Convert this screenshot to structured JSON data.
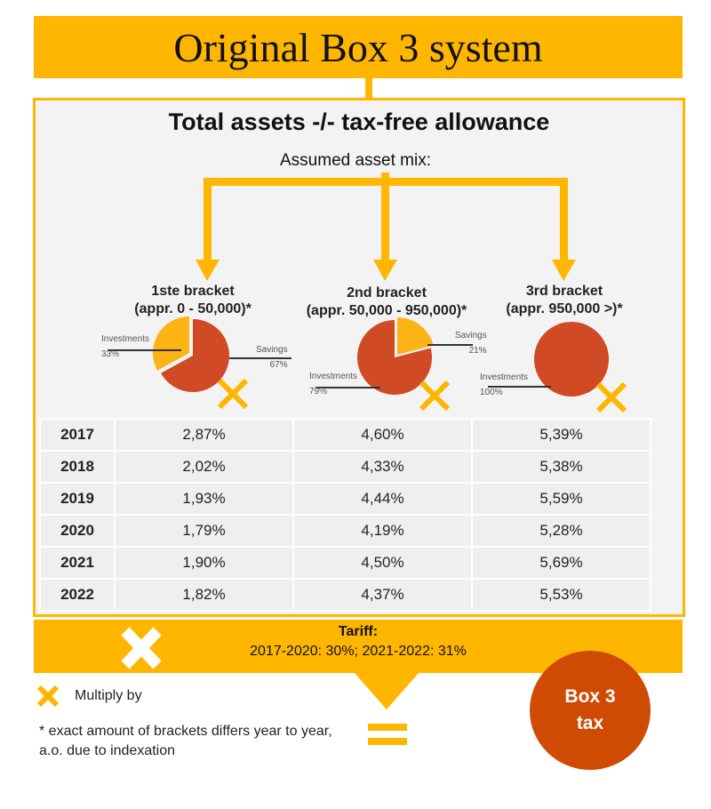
{
  "title": "Original Box 3 system",
  "heading": "Total assets -/- tax-free allowance",
  "asset_mix_label": "Assumed asset mix:",
  "brackets": [
    {
      "name": "1ste bracket",
      "range": "(appr. 0 - 50,000)*",
      "slices": [
        {
          "label": "Investments",
          "pct": "33%",
          "value": 33,
          "color": "#fbb315"
        },
        {
          "label": "Savings",
          "pct": "67%",
          "value": 67,
          "color": "#cf4a25"
        }
      ]
    },
    {
      "name": "2nd bracket",
      "range": "(appr. 50,000 - 950,000)*",
      "slices": [
        {
          "label": "Savings",
          "pct": "21%",
          "value": 21,
          "color": "#fbb315"
        },
        {
          "label": "Investments",
          "pct": "79%",
          "value": 79,
          "color": "#cf4a25"
        }
      ]
    },
    {
      "name": "3rd bracket",
      "range": "(appr. 950,000 >)*",
      "slices": [
        {
          "label": "Investments",
          "pct": "100%",
          "value": 100,
          "color": "#cf4a25"
        }
      ]
    }
  ],
  "table": [
    [
      "2017",
      "2,87%",
      "4,60%",
      "5,39%"
    ],
    [
      "2018",
      "2,02%",
      "4,33%",
      "5,38%"
    ],
    [
      "2019",
      "1,93%",
      "4,44%",
      "5,59%"
    ],
    [
      "2020",
      "1,79%",
      "4,19%",
      "5,28%"
    ],
    [
      "2021",
      "1,90%",
      "4,50%",
      "5,69%"
    ],
    [
      "2022",
      "1,82%",
      "4,37%",
      "5,53%"
    ]
  ],
  "tariff": {
    "label": "Tariff:",
    "text": "2017-2020: 30%; 2021-2022: 31%"
  },
  "legend": {
    "multiply": "Multiply by",
    "footnote": "* exact amount of brackets differs year to year, a.o. due to indexation"
  },
  "result": "Box 3 tax",
  "colors": {
    "accent": "#ffb600",
    "red": "#cf4a02",
    "background": "#f3f3f3"
  }
}
